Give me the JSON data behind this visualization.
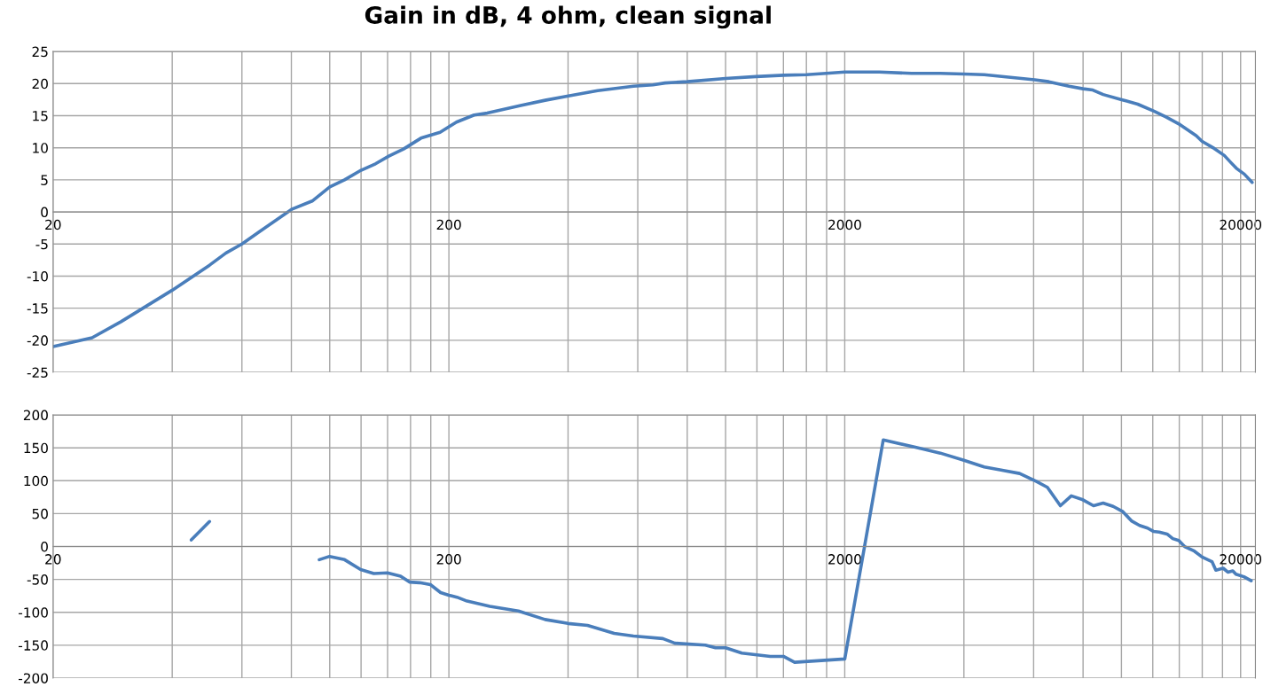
{
  "chart_data": [
    {
      "type": "line",
      "title": "Gain in dB, 4 ohm, clean signal",
      "log": "x",
      "grid": true,
      "marker": "none",
      "line_style": "solid",
      "xlim": [
        20,
        21800
      ],
      "ylim": [
        -25,
        25
      ],
      "xticks": [
        20,
        {
          "value": 40,
          "label": null
        },
        {
          "value": 60,
          "label": null
        },
        {
          "value": 80,
          "label": null
        },
        {
          "value": 100,
          "label": null
        },
        {
          "value": 120,
          "label": null
        },
        {
          "value": 140,
          "label": null
        },
        {
          "value": 160,
          "label": null
        },
        {
          "value": 180,
          "label": null
        },
        200,
        {
          "value": 400,
          "label": null
        },
        {
          "value": 600,
          "label": null
        },
        {
          "value": 800,
          "label": null
        },
        {
          "value": 1000,
          "label": null
        },
        {
          "value": 1200,
          "label": null
        },
        {
          "value": 1400,
          "label": null
        },
        {
          "value": 1600,
          "label": null
        },
        {
          "value": 1800,
          "label": null
        },
        2000,
        {
          "value": 4000,
          "label": null
        },
        {
          "value": 6000,
          "label": null
        },
        {
          "value": 8000,
          "label": null
        },
        {
          "value": 10000,
          "label": null
        },
        {
          "value": 12000,
          "label": null
        },
        {
          "value": 14000,
          "label": null
        },
        {
          "value": 16000,
          "label": null
        },
        {
          "value": 18000,
          "label": null
        },
        20000
      ],
      "yticks": [
        -25,
        -20,
        -15,
        -10,
        -5,
        0,
        5,
        10,
        15,
        20,
        25
      ],
      "series": [
        {
          "color": "#4a7ebb",
          "x": [
            20,
            25.1,
            29.7,
            40,
            49.7,
            54.7,
            60,
            66,
            80.1,
            90.3,
            100,
            109,
            120,
            130.5,
            141,
            153.6,
            170,
            190,
            209,
            231.6,
            250,
            303.7,
            350,
            403.6,
            475,
            585,
            655,
            703,
            800,
            1000,
            1194,
            1400,
            1600,
            1795,
            2000,
            2444,
            2950,
            3487,
            4000,
            4500,
            5177,
            6038,
            6550,
            7370,
            7995,
            8466,
            8990,
            10010,
            10990,
            12080,
            12950,
            14070,
            15440,
            15990,
            17150,
            18190,
            18830,
            19510,
            20430,
            21390
          ],
          "values": [
            -21.0,
            -19.6,
            -17.1,
            -12.2,
            -8.3,
            -6.4,
            -5.0,
            -3.2,
            0.4,
            1.7,
            3.9,
            5.0,
            6.5,
            7.5,
            8.7,
            9.8,
            11.5,
            12.4,
            14.0,
            15.1,
            15.4,
            16.6,
            17.4,
            18.1,
            18.9,
            19.6,
            19.8,
            20.1,
            20.3,
            20.8,
            21.1,
            21.3,
            21.4,
            21.6,
            21.8,
            21.8,
            21.6,
            21.6,
            21.5,
            21.4,
            21.0,
            20.6,
            20.3,
            19.6,
            19.2,
            19.0,
            18.3,
            17.5,
            16.8,
            15.7,
            14.8,
            13.6,
            11.9,
            11.0,
            9.9,
            8.8,
            7.8,
            6.8,
            5.9,
            4.6
          ]
        }
      ]
    },
    {
      "type": "line",
      "log": "x",
      "grid": true,
      "marker": "none",
      "line_style": "solid",
      "xlim": [
        20,
        21800
      ],
      "ylim": [
        -200,
        200
      ],
      "xticks": [
        20,
        {
          "value": 40,
          "label": null
        },
        {
          "value": 60,
          "label": null
        },
        {
          "value": 80,
          "label": null
        },
        {
          "value": 100,
          "label": null
        },
        {
          "value": 120,
          "label": null
        },
        {
          "value": 140,
          "label": null
        },
        {
          "value": 160,
          "label": null
        },
        {
          "value": 180,
          "label": null
        },
        200,
        {
          "value": 400,
          "label": null
        },
        {
          "value": 600,
          "label": null
        },
        {
          "value": 800,
          "label": null
        },
        {
          "value": 1000,
          "label": null
        },
        {
          "value": 1200,
          "label": null
        },
        {
          "value": 1400,
          "label": null
        },
        {
          "value": 1600,
          "label": null
        },
        {
          "value": 1800,
          "label": null
        },
        2000,
        {
          "value": 4000,
          "label": null
        },
        {
          "value": 6000,
          "label": null
        },
        {
          "value": 8000,
          "label": null
        },
        {
          "value": 10000,
          "label": null
        },
        {
          "value": 12000,
          "label": null
        },
        {
          "value": 14000,
          "label": null
        },
        {
          "value": 16000,
          "label": null
        },
        {
          "value": 18000,
          "label": null
        },
        20000
      ],
      "yticks": [
        -200,
        -150,
        -100,
        -50,
        0,
        50,
        100,
        150,
        200
      ],
      "series": [
        {
          "color": "#4a7ebb",
          "x": [
            44.7,
            49.7,
            70,
            94.1,
            99.9,
            109,
            119.7,
            129.2,
            139.9,
            151,
            159,
            168.8,
            179.6,
            190.6,
            200,
            209.5,
            222.3,
            253.7,
            299.6,
            350,
            400,
            448,
            523,
            585,
            694,
            745,
            889,
            943,
            1000,
            1099,
            1297,
            1400,
            1494,
            2000,
            2502,
            3016,
            3487,
            4000,
            4500,
            5000,
            5530,
            6100,
            6500,
            7010,
            7470,
            7990,
            8500,
            8990,
            9530,
            10080,
            10600,
            11110,
            11640,
            12040,
            12460,
            13040,
            13480,
            13960,
            14440,
            15280,
            15990,
            16930,
            17320,
            18070,
            18570,
            19110,
            19460,
            20390,
            21270
          ],
          "values": [
            10,
            38,
            null,
            -20,
            -15,
            -20,
            -35,
            -41,
            -40,
            -45,
            -54,
            -55,
            -58,
            -70,
            -74,
            -77,
            -83,
            -91,
            -98,
            -111,
            -117,
            -120,
            -132,
            -136,
            -140,
            -147,
            -150,
            -154,
            -154,
            -162,
            -167,
            -167,
            -176,
            -171,
            162,
            151,
            142,
            131,
            121,
            116,
            111,
            99,
            90,
            62,
            77,
            71,
            62,
            66,
            61,
            53,
            39,
            32,
            28,
            23,
            22,
            19,
            12,
            9,
            0,
            -7,
            -16,
            -23,
            -36,
            -33,
            -39,
            -37,
            -42,
            -46,
            -52
          ]
        }
      ]
    }
  ]
}
